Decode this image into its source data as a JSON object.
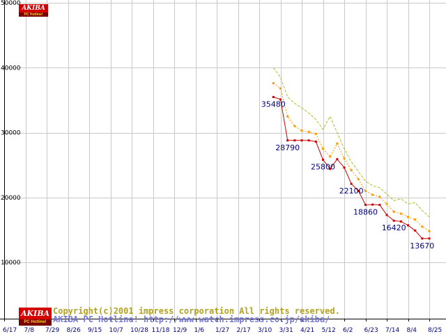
{
  "page": {
    "bg": "#ffffff"
  },
  "logo_top": {
    "title": "AKIBA",
    "subtitle": "PC Hotline!"
  },
  "footer": {
    "logo": {
      "title": "AKIBA",
      "subtitle": "PC Hotline!"
    },
    "line1": "Copyright(c)2001 impress corporation All rights reserved.",
    "line2": "AKIBA PC Hotline!  http://www.watch.impress.co.jp/akiba/",
    "colors": {
      "line1": "#b3a21e",
      "line2": "#7678d4"
    }
  },
  "chart_data": {
    "type": "line",
    "title": "",
    "xlabel": "",
    "ylabel": "",
    "ylim": [
      0,
      50000
    ],
    "yticks": [
      10000,
      20000,
      30000,
      40000,
      50000
    ],
    "xtick_labels": [
      "6/17",
      "7/8",
      "7/29",
      "8/26",
      "9/15",
      "10/7",
      "10/28",
      "11/18",
      "12/9",
      "1/6",
      "1/27",
      "2/17",
      "3/10",
      "3/31",
      "4/21",
      "5/12",
      "6/2",
      "6/23",
      "7/14",
      "8/4",
      "8/25"
    ],
    "grid": true,
    "weeks": [
      "3/24",
      "3/31",
      "4/7",
      "4/14",
      "4/21",
      "4/28",
      "5/5",
      "5/12",
      "5/19",
      "5/26",
      "6/2",
      "6/9",
      "6/16",
      "6/23",
      "6/30",
      "7/7",
      "7/14",
      "7/21",
      "7/28",
      "8/4",
      "8/11",
      "8/18",
      "8/25"
    ],
    "week_t": [
      12.667,
      13,
      13.333,
      13.667,
      14,
      14.333,
      14.667,
      15,
      15.333,
      15.667,
      16,
      16.333,
      16.667,
      17,
      17.333,
      17.667,
      18,
      18.333,
      18.667,
      19,
      19.333,
      19.667,
      20
    ],
    "series": [
      {
        "name": "green",
        "color": "#b5bd22",
        "dash": "4 2",
        "marker": false,
        "values": [
          40000,
          38500,
          35500,
          34500,
          33800,
          33000,
          32000,
          30500,
          32500,
          30000,
          27500,
          25500,
          24000,
          22500,
          21800,
          21500,
          20500,
          19500,
          19800,
          19000,
          19200,
          18000,
          17000
        ]
      },
      {
        "name": "orange",
        "color": "#ff9900",
        "dash": "2 2",
        "marker": true,
        "values": [
          37600,
          36800,
          32500,
          31000,
          30300,
          30100,
          29800,
          27500,
          26300,
          28300,
          26000,
          24200,
          22800,
          21000,
          20400,
          20100,
          19000,
          17800,
          17500,
          17000,
          16600,
          15500,
          14800
        ]
      },
      {
        "name": "red",
        "color": "#cc0000",
        "dash": "",
        "marker": true,
        "values": [
          35480,
          35100,
          28790,
          28790,
          28790,
          28790,
          28600,
          25800,
          24400,
          25900,
          24600,
          22100,
          21000,
          18860,
          18900,
          18860,
          17300,
          16420,
          16300,
          15700,
          14900,
          13670,
          13670
        ]
      }
    ],
    "point_label_series": "red",
    "point_labels": [
      {
        "text": "35480",
        "week": "3/24"
      },
      {
        "text": "28790",
        "week": "4/7"
      },
      {
        "text": "25800",
        "week": "5/12"
      },
      {
        "text": "22100",
        "week": "6/9"
      },
      {
        "text": "18860",
        "week": "6/23"
      },
      {
        "text": "16420",
        "week": "7/21"
      },
      {
        "text": "13670",
        "week": "8/18"
      }
    ],
    "colors": {
      "grid": "#c9c9c9",
      "axis": "#000000",
      "xtick_text": "#000080",
      "ytick_text": "#000000",
      "point_label": "#000080"
    }
  }
}
